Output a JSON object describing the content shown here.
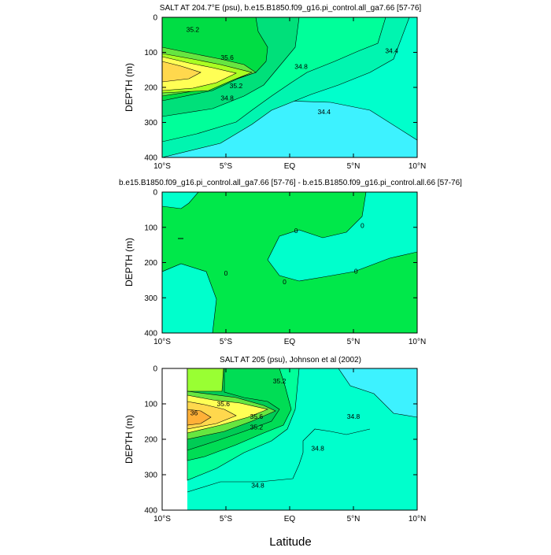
{
  "chart_data": [
    {
      "type": "contour",
      "title": "SALT AT 204.7°E (psu), b.e15.B1850.f09_g16.pi_control.all_ga7.66 [57-76]",
      "xlabel": "",
      "ylabel": "DEPTH (m)",
      "xlim": [
        -10,
        10
      ],
      "ylim": [
        400,
        0
      ],
      "x_ticks": [
        "10°S",
        "5°S",
        "EQ",
        "5°N",
        "10°N"
      ],
      "y_ticks": [
        "0",
        "100",
        "200",
        "300",
        "400"
      ],
      "contour_labels": [
        {
          "text": "35.2",
          "lat": -7.6,
          "depth": 35
        },
        {
          "text": "35.6",
          "lat": -4.9,
          "depth": 115
        },
        {
          "text": "35.2",
          "lat": -4.2,
          "depth": 195
        },
        {
          "text": "34.8",
          "lat": -4.9,
          "depth": 230
        },
        {
          "text": "34.8",
          "lat": 0.9,
          "depth": 140
        },
        {
          "text": "34.4",
          "lat": 8.0,
          "depth": 95
        },
        {
          "text": "34.4",
          "lat": 2.7,
          "depth": 270
        }
      ],
      "legend": []
    },
    {
      "type": "contour",
      "title": "b.e15.B1850.f09_g16.pi_control.all_ga7.66 [57-76] - b.e15.B1850.f09_g16.pi_control.all.66 [57-76]",
      "xlabel": "",
      "ylabel": "DEPTH (m)",
      "xlim": [
        -10,
        10
      ],
      "ylim": [
        400,
        0
      ],
      "x_ticks": [
        "10°S",
        "5°S",
        "EQ",
        "5°N",
        "10°N"
      ],
      "y_ticks": [
        "0",
        "100",
        "200",
        "300",
        "400"
      ],
      "contour_labels": [
        {
          "text": "0",
          "lat": 0.5,
          "depth": 110
        },
        {
          "text": "0",
          "lat": 5.7,
          "depth": 95
        },
        {
          "text": "0",
          "lat": -5.0,
          "depth": 230
        },
        {
          "text": "0",
          "lat": -0.4,
          "depth": 255
        },
        {
          "text": "0",
          "lat": 5.2,
          "depth": 225
        }
      ],
      "legend": []
    },
    {
      "type": "contour",
      "title": "SALT AT 205 (psu), Johnson et al (2002)",
      "xlabel": "Latitude",
      "ylabel": "DEPTH (m)",
      "xlim": [
        -10,
        10
      ],
      "ylim": [
        400,
        0
      ],
      "x_ticks": [
        "10°S",
        "5°S",
        "EQ",
        "5°N",
        "10°N"
      ],
      "y_ticks": [
        "0",
        "100",
        "200",
        "300",
        "400"
      ],
      "contour_labels": [
        {
          "text": "35.2",
          "lat": -0.8,
          "depth": 35
        },
        {
          "text": "35.6",
          "lat": -5.2,
          "depth": 100
        },
        {
          "text": "36",
          "lat": -7.5,
          "depth": 125
        },
        {
          "text": "35.6",
          "lat": -2.6,
          "depth": 135
        },
        {
          "text": "35.2",
          "lat": -2.6,
          "depth": 165
        },
        {
          "text": "34.8",
          "lat": 5.0,
          "depth": 135
        },
        {
          "text": "34.8",
          "lat": 2.2,
          "depth": 225
        },
        {
          "text": "34.8",
          "lat": -2.5,
          "depth": 330
        }
      ],
      "legend": []
    }
  ]
}
